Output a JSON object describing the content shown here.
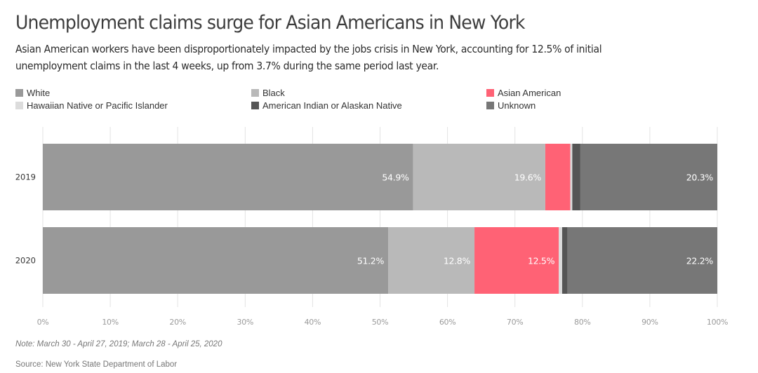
{
  "header": {
    "title": "Unemployment claims surge for Asian Americans in New York",
    "subtitle": "Asian American workers have been disproportionately impacted by the jobs crisis in New York, accounting for 12.5% of initial unemployment claims in the last 4 weeks, up from 3.7% during the same period last year."
  },
  "footer": {
    "note": "Note: March 30 - April 27, 2019; March 28 - April 25, 2020",
    "source": "Source: New York State Department of Labor"
  },
  "chart_data": {
    "type": "bar",
    "orientation": "horizontal",
    "stacked": true,
    "title": "Unemployment claims surge for Asian Americans in New York",
    "xlabel": "",
    "ylabel": "",
    "xlim": [
      0,
      100
    ],
    "grid": true,
    "legend_position": "top",
    "categories": [
      "2019",
      "2020"
    ],
    "x_ticks": [
      "0%",
      "10%",
      "20%",
      "30%",
      "40%",
      "50%",
      "60%",
      "70%",
      "80%",
      "90%",
      "100%"
    ],
    "series": [
      {
        "name": "White",
        "color": "#999999",
        "values": [
          54.9,
          51.2
        ],
        "labels": [
          "54.9%",
          "51.2%"
        ]
      },
      {
        "name": "Black",
        "color": "#b9b9b9",
        "values": [
          19.6,
          12.8
        ],
        "labels": [
          "19.6%",
          "12.8%"
        ]
      },
      {
        "name": "Asian American",
        "color": "#ff6275",
        "values": [
          3.7,
          12.5
        ],
        "labels": [
          "",
          "12.5%"
        ]
      },
      {
        "name": "Hawaiian Native or Pacific Islander",
        "color": "#dcdcdc",
        "values": [
          0.3,
          0.5
        ],
        "labels": [
          "",
          ""
        ]
      },
      {
        "name": "American Indian or Alaskan Native",
        "color": "#555555",
        "values": [
          1.2,
          0.8
        ],
        "labels": [
          "",
          ""
        ]
      },
      {
        "name": "Unknown",
        "color": "#777777",
        "values": [
          20.3,
          22.2
        ],
        "labels": [
          "20.3%",
          "22.2%"
        ]
      }
    ],
    "legend_order": [
      "White",
      "Black",
      "Asian American",
      "Hawaiian Native or Pacific Islander",
      "American Indian or Alaskan Native",
      "Unknown"
    ]
  }
}
